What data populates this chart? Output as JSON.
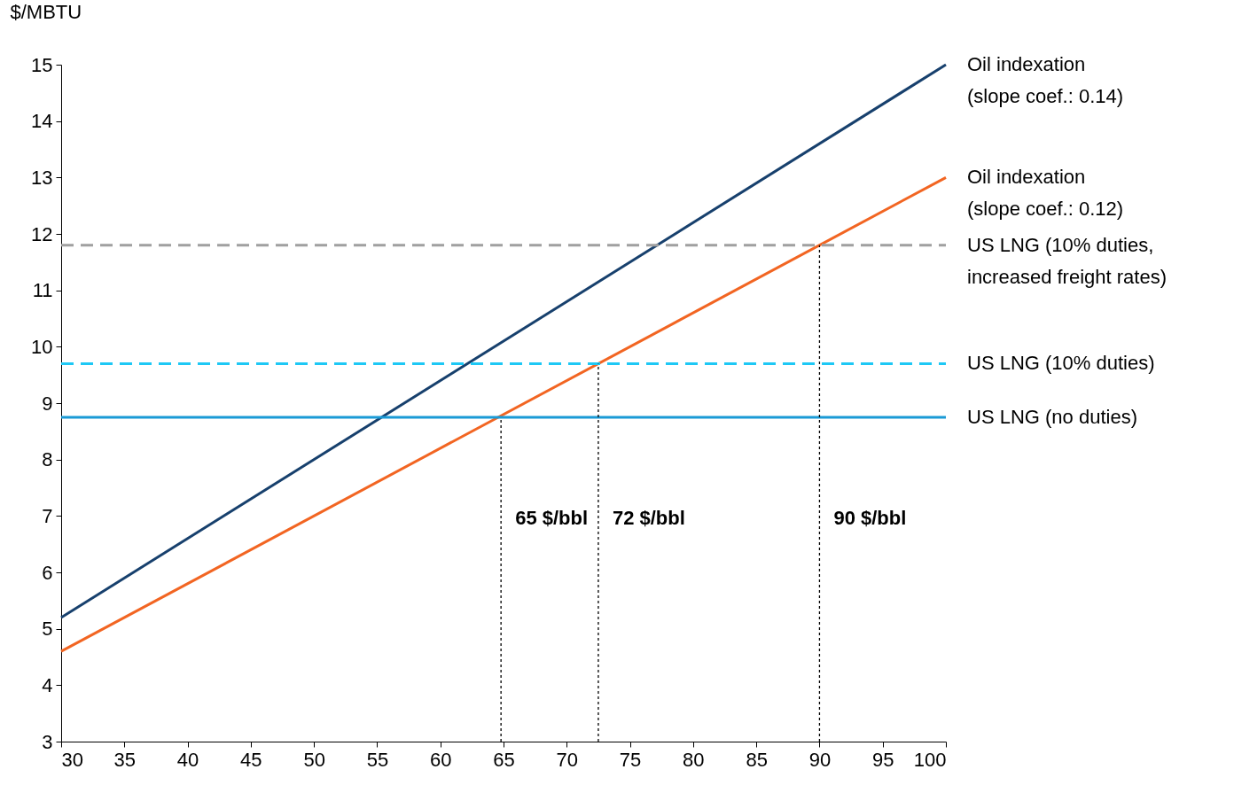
{
  "chart_data": {
    "type": "line",
    "ylabel": "$/MBTU",
    "xlim": [
      30,
      100
    ],
    "xticks": [
      30,
      35,
      40,
      45,
      50,
      55,
      60,
      65,
      70,
      75,
      80,
      85,
      90,
      95,
      100
    ],
    "ylim": [
      3,
      15
    ],
    "yticks": [
      3,
      4,
      5,
      6,
      7,
      8,
      9,
      10,
      11,
      12,
      13,
      14,
      15
    ],
    "grid": false,
    "series": [
      {
        "name": "Oil indexation\n(slope coef.: 0.14)",
        "color": "#17406d",
        "x": [
          30,
          100
        ],
        "values": [
          5.2,
          15.0
        ],
        "line_style": "solid"
      },
      {
        "name": "Oil indexation\n(slope coef.: 0.12)",
        "color": "#f26522",
        "x": [
          30,
          100
        ],
        "values": [
          4.6,
          13.0
        ],
        "line_style": "solid"
      },
      {
        "name": "US LNG (10% duties,\nincreased freight rates)",
        "color": "#a0a0a0",
        "x": [
          30,
          100
        ],
        "values": [
          11.8,
          11.8
        ],
        "line_style": "dashed"
      },
      {
        "name": "US LNG (10% duties)",
        "color": "#1ec8f5",
        "x": [
          30,
          100
        ],
        "values": [
          9.7,
          9.7
        ],
        "line_style": "dashed"
      },
      {
        "name": "US LNG (no duties)",
        "color": "#1a9ad6",
        "x": [
          30,
          100
        ],
        "values": [
          8.75,
          8.75
        ],
        "line_style": "solid"
      },
      {
        "color": "#000000",
        "x": [
          64.8,
          64.8
        ],
        "values": [
          3,
          8.75
        ],
        "line_style": "dotted"
      },
      {
        "color": "#000000",
        "x": [
          72.5,
          72.5
        ],
        "values": [
          3,
          9.7
        ],
        "line_style": "dotted"
      },
      {
        "color": "#000000",
        "x": [
          90,
          90
        ],
        "values": [
          3,
          11.8
        ],
        "line_style": "dotted"
      }
    ],
    "annotations": [
      "65 $/bbl",
      "72 $/bbl",
      "90 $/bbl"
    ]
  }
}
